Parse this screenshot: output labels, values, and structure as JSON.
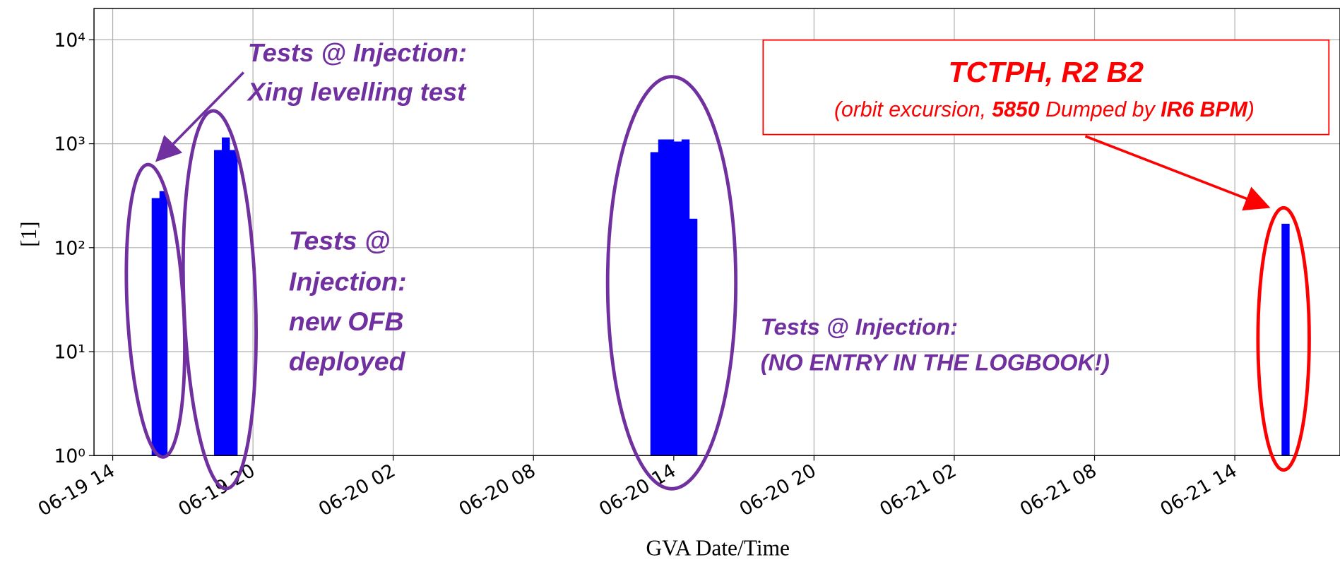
{
  "chart_data": {
    "type": "histogram",
    "xlabel": "GVA Date/Time",
    "ylabel": "[1]",
    "log_y": true,
    "grid": true,
    "xlim": [
      "06-19 13:12",
      "06-21 18:30"
    ],
    "ylim": [
      1,
      20000
    ],
    "xticks": [
      {
        "value": "06-19 14:00",
        "label": "06-19 14"
      },
      {
        "value": "06-19 20:00",
        "label": "06-19 20"
      },
      {
        "value": "06-20 02:00",
        "label": "06-20 02"
      },
      {
        "value": "06-20 08:00",
        "label": "06-20 08"
      },
      {
        "value": "06-20 14:00",
        "label": "06-20 14"
      },
      {
        "value": "06-20 20:00",
        "label": "06-20 20"
      },
      {
        "value": "06-21 02:00",
        "label": "06-21 02"
      },
      {
        "value": "06-21 08:00",
        "label": "06-21 08"
      },
      {
        "value": "06-21 14:00",
        "label": "06-21 14"
      }
    ],
    "yticks": [
      {
        "value": 1,
        "label": "10⁰"
      },
      {
        "value": 10,
        "label": "10¹"
      },
      {
        "value": 100,
        "label": "10²"
      },
      {
        "value": 1000,
        "label": "10³"
      },
      {
        "value": 10000,
        "label": "10⁴"
      }
    ],
    "series": [
      {
        "color": "#0000ff",
        "bins": [
          "06-19 15:40",
          "06-19 16:00",
          "06-19 16:20"
        ],
        "values": [
          300,
          350
        ]
      },
      {
        "color": "#0000ff",
        "bins": [
          "06-19 18:20",
          "06-19 18:40",
          "06-19 19:00",
          "06-19 19:20"
        ],
        "values": [
          870,
          1150,
          870
        ]
      },
      {
        "color": "#0000ff",
        "bins": [
          "06-20 13:00",
          "06-20 13:20",
          "06-20 13:40",
          "06-20 14:00",
          "06-20 14:20",
          "06-20 14:40",
          "06-20 15:00"
        ],
        "values": [
          830,
          1100,
          1100,
          1050,
          1100,
          190
        ]
      },
      {
        "color": "#0000ff",
        "bins": [
          "06-21 16:00",
          "06-21 16:20"
        ],
        "values": [
          170
        ]
      }
    ],
    "annotations": [
      {
        "lines": [
          "Tests @ Injection:",
          "Xing levelling test"
        ]
      },
      {
        "lines": [
          "Tests @",
          "Injection:",
          "new OFB",
          "deployed"
        ]
      },
      {
        "lines": [
          "Tests @ Injection:",
          "(NO ENTRY IN THE LOGBOOK!)"
        ]
      },
      {
        "title": "TCTPH, R2 B2",
        "parts": [
          "(orbit excursion, ",
          "5850",
          " Dumped by ",
          "IR6 BPM",
          ")"
        ]
      }
    ]
  }
}
